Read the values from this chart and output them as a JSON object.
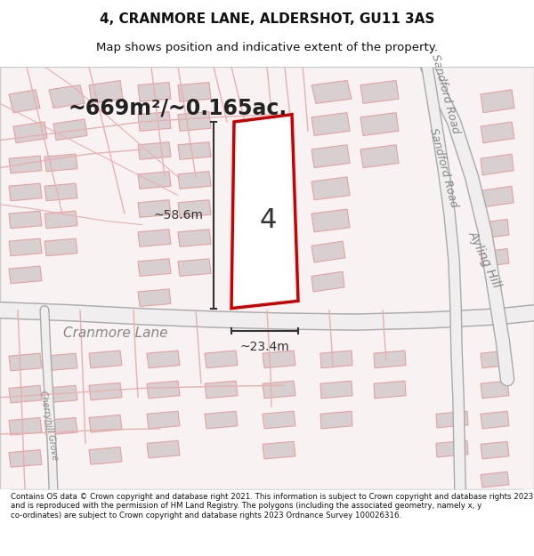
{
  "title": "4, CRANMORE LANE, ALDERSHOT, GU11 3AS",
  "subtitle": "Map shows position and indicative extent of the property.",
  "area_text": "~669m²/~0.165ac.",
  "width_label": "~23.4m",
  "height_label": "~58.6m",
  "plot_number": "4",
  "footer_text": "Contains OS data © Crown copyright and database right 2021. This information is subject to Crown copyright and database rights 2023 and is reproduced with the permission of HM Land Registry. The polygons (including the associated geometry, namely x, y co-ordinates) are subject to Crown copyright and database rights 2023 Ordnance Survey 100026316.",
  "bg_color": "#f5f0f0",
  "map_bg": "#f5f0f0",
  "plot_fill": "#ffffff",
  "plot_border": "#cc0000",
  "road_color_light": "#e8a0a0",
  "road_color_dark": "#c87070",
  "building_fill": "#d8d0d0",
  "title_color": "#111111",
  "footer_color": "#111111",
  "map_area": [
    0,
    0.12,
    1,
    0.88
  ]
}
